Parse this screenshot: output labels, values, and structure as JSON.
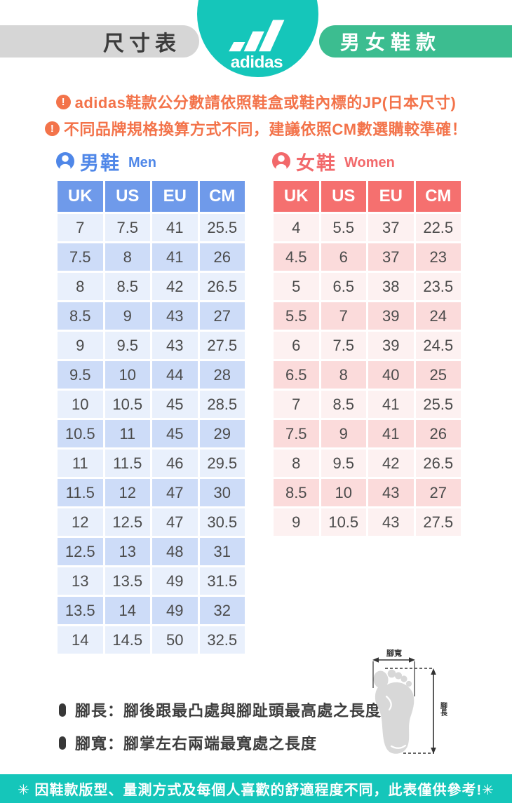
{
  "header": {
    "size_chart_label": "尺寸表",
    "brand_logo": "adidas",
    "category_label": "男女鞋款"
  },
  "notices": {
    "line1": "adidas鞋款公分數請依照鞋盒或鞋內標的JP(日本尺寸)",
    "line2": "不同品牌規格換算方式不同，建議依照CM數選購較準確！",
    "icon": "exclamation-circle"
  },
  "men_section": {
    "title": "男鞋",
    "subtitle": "Men",
    "columns": [
      "UK",
      "US",
      "EU",
      "CM"
    ],
    "rows": [
      [
        "7",
        "7.5",
        "41",
        "25.5"
      ],
      [
        "7.5",
        "8",
        "41",
        "26"
      ],
      [
        "8",
        "8.5",
        "42",
        "26.5"
      ],
      [
        "8.5",
        "9",
        "43",
        "27"
      ],
      [
        "9",
        "9.5",
        "43",
        "27.5"
      ],
      [
        "9.5",
        "10",
        "44",
        "28"
      ],
      [
        "10",
        "10.5",
        "45",
        "28.5"
      ],
      [
        "10.5",
        "11",
        "45",
        "29"
      ],
      [
        "11",
        "11.5",
        "46",
        "29.5"
      ],
      [
        "11.5",
        "12",
        "47",
        "30"
      ],
      [
        "12",
        "12.5",
        "47",
        "30.5"
      ],
      [
        "12.5",
        "13",
        "48",
        "31"
      ],
      [
        "13",
        "13.5",
        "49",
        "31.5"
      ],
      [
        "13.5",
        "14",
        "49",
        "32"
      ],
      [
        "14",
        "14.5",
        "50",
        "32.5"
      ]
    ]
  },
  "women_section": {
    "title": "女鞋",
    "subtitle": "Women",
    "columns": [
      "UK",
      "US",
      "EU",
      "CM"
    ],
    "rows": [
      [
        "4",
        "5.5",
        "37",
        "22.5"
      ],
      [
        "4.5",
        "6",
        "37",
        "23"
      ],
      [
        "5",
        "6.5",
        "38",
        "23.5"
      ],
      [
        "5.5",
        "7",
        "39",
        "24"
      ],
      [
        "6",
        "7.5",
        "39",
        "24.5"
      ],
      [
        "6.5",
        "8",
        "40",
        "25"
      ],
      [
        "7",
        "8.5",
        "41",
        "25.5"
      ],
      [
        "7.5",
        "9",
        "41",
        "26"
      ],
      [
        "8",
        "9.5",
        "42",
        "26.5"
      ],
      [
        "8.5",
        "10",
        "43",
        "27"
      ],
      [
        "9",
        "10.5",
        "43",
        "27.5"
      ]
    ]
  },
  "measure_notes": {
    "length": "腳長：腳後跟最凸處與腳趾頭最高處之長度",
    "width": "腳寬：腳掌左右兩端最寬處之長度"
  },
  "foot_diagram": {
    "width_label": "腳寬",
    "length_label": "腳長"
  },
  "footer": {
    "text": "✳ 因鞋款版型、量測方式及每個人喜歡的舒適程度不同，此表僅供參考!✳"
  },
  "colors": {
    "teal": "#15c6ba",
    "green_pill": "#3cbd90",
    "gray_pill": "#d6d6d6",
    "notice_orange": "#f3734a",
    "men_blue_header": "#6f9aea",
    "men_title_blue": "#4f87e8",
    "men_row_light": "#e9f0fc",
    "men_row_dark": "#cddcf8",
    "women_coral_header": "#f5706f",
    "women_title_coral": "#f2696b",
    "women_row_light": "#fdf1f1",
    "women_row_dark": "#fbdbdb"
  }
}
